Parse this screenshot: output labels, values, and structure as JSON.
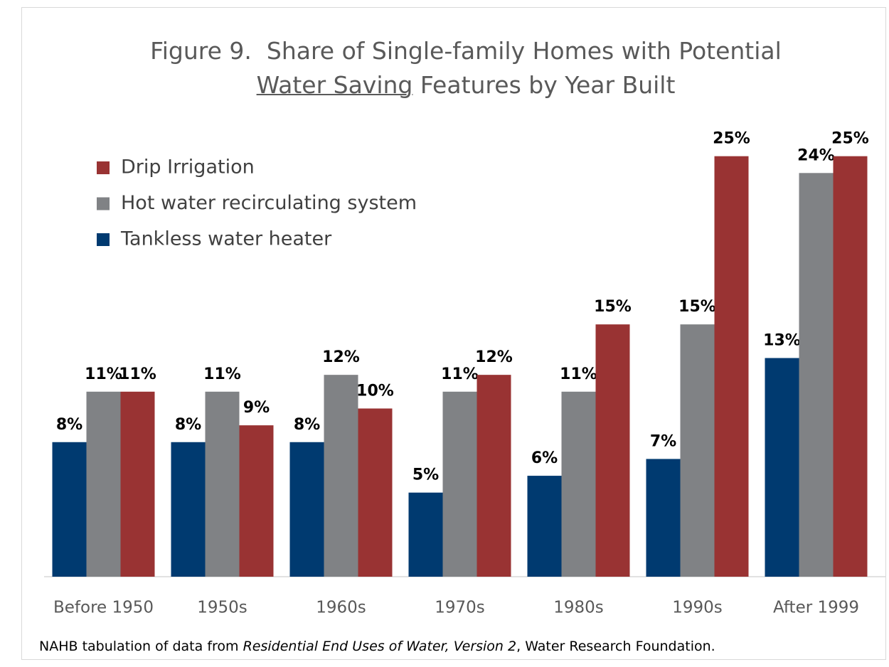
{
  "chart_data": {
    "type": "bar",
    "title": [
      "Figure 9.  Share of Single-family Homes with Potential",
      "Water Saving",
      " Features by Year Built"
    ],
    "source": [
      "NAHB tabulation of data from ",
      "Residential End Uses of Water, Version 2",
      ", Water Research Foundation."
    ],
    "categories": [
      "Before 1950",
      "1950s",
      "1960s",
      "1970s",
      "1980s",
      "1990s",
      "After 1999"
    ],
    "series": [
      {
        "name": "Tankless water heater",
        "color": "#003a70",
        "values": [
          8,
          8,
          8,
          5,
          6,
          7,
          13
        ],
        "value_labels": [
          "8%",
          "8%",
          "8%",
          "5%",
          "6%",
          "7%",
          "13%"
        ]
      },
      {
        "name": "Hot water recirculating system",
        "color": "#808285",
        "values": [
          11,
          11,
          12,
          11,
          11,
          15,
          24
        ],
        "value_labels": [
          "11%",
          "11%",
          "12%",
          "11%",
          "11%",
          "15%",
          "24%"
        ]
      },
      {
        "name": "Drip Irrigation",
        "color": "#993333",
        "values": [
          11,
          9,
          10,
          12,
          15,
          25,
          25
        ],
        "value_labels": [
          "11%",
          "9%",
          "10%",
          "12%",
          "15%",
          "25%",
          "25%"
        ]
      }
    ],
    "ylim": [
      0,
      26
    ],
    "legend": "top-left"
  }
}
